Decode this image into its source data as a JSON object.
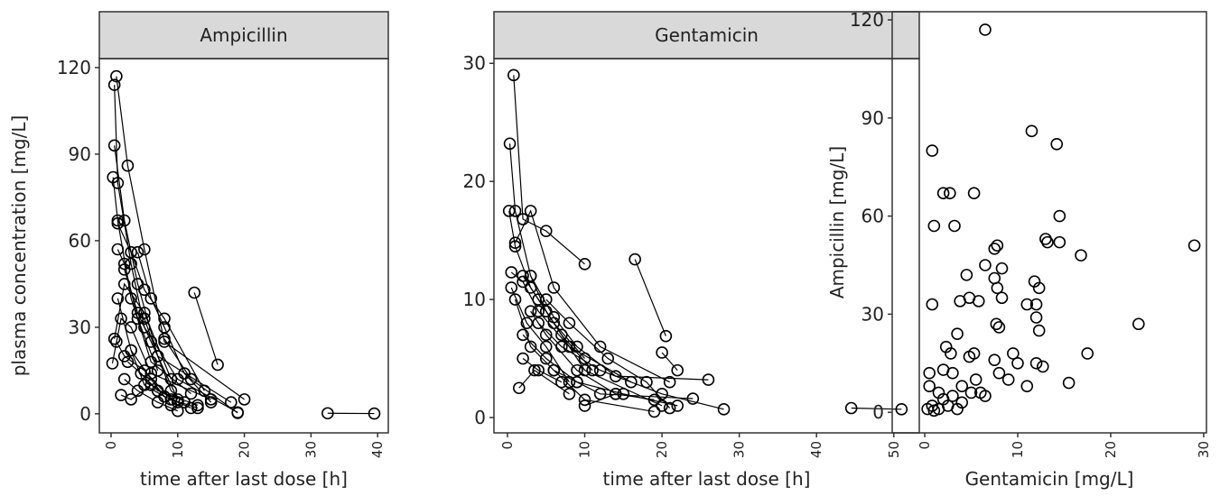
{
  "chart_data": [
    {
      "type": "line",
      "strip": "Ampicillin",
      "xlabel": "time after last dose [h]",
      "ylabel": "plasma concentration [mg/L]",
      "xlim": [
        -1.76,
        41.6
      ],
      "ylim": [
        -6.6,
        123.1
      ],
      "xticks": [
        0,
        10,
        20,
        30,
        40
      ],
      "yticks": [
        0,
        30,
        60,
        90,
        120
      ],
      "color": "#000000",
      "series": [
        {
          "x": [
            0.5,
            1,
            3,
            5,
            10,
            19
          ],
          "values": [
            114,
            80,
            52,
            30,
            12,
            0.5
          ]
        },
        {
          "x": [
            0.8,
            2.5,
            5,
            8,
            20
          ],
          "values": [
            117,
            86,
            57,
            25,
            5
          ]
        },
        {
          "x": [
            0.5,
            2,
            4,
            7,
            18
          ],
          "values": [
            93,
            67,
            45,
            20,
            4
          ]
        },
        {
          "x": [
            0.3,
            1,
            3,
            6,
            12
          ],
          "values": [
            82,
            67,
            40,
            18,
            7
          ]
        },
        {
          "x": [
            1,
            2,
            4,
            7
          ],
          "values": [
            57,
            52,
            33,
            15
          ]
        },
        {
          "x": [
            0.2,
            1.5,
            3,
            6,
            15
          ],
          "values": [
            17.5,
            33,
            30,
            14,
            5
          ]
        },
        {
          "x": [
            0.5,
            2,
            5,
            9
          ],
          "values": [
            26,
            45,
            35,
            12
          ]
        },
        {
          "x": [
            12.5,
            16
          ],
          "values": [
            42,
            17
          ]
        },
        {
          "x": [
            32.5,
            39.5
          ],
          "values": [
            0.2,
            0.1
          ]
        },
        {
          "x": [
            8,
            12,
            19
          ],
          "values": [
            26,
            12,
            0.3
          ]
        },
        {
          "x": [
            1,
            3,
            5,
            8,
            14
          ],
          "values": [
            66,
            56,
            43,
            33,
            8
          ]
        },
        {
          "x": [
            2,
            4,
            6,
            10
          ],
          "values": [
            50,
            35,
            25,
            5
          ]
        },
        {
          "x": [
            0.8,
            2,
            5,
            9,
            13
          ],
          "values": [
            25,
            20,
            15,
            5,
            2
          ]
        },
        {
          "x": [
            1.5,
            3,
            6,
            10
          ],
          "values": [
            6.5,
            5,
            10,
            4
          ]
        },
        {
          "x": [
            4,
            6,
            8,
            11,
            15
          ],
          "values": [
            56,
            40,
            30,
            14,
            4
          ]
        },
        {
          "x": [
            2,
            4,
            7,
            10
          ],
          "values": [
            12,
            8,
            4,
            1
          ]
        },
        {
          "x": [
            3,
            5,
            8,
            12
          ],
          "values": [
            22,
            10,
            6,
            2
          ]
        },
        {
          "x": [
            1,
            3,
            6,
            9
          ],
          "values": [
            40,
            22,
            12,
            3
          ]
        },
        {
          "x": [
            5,
            7,
            9,
            11
          ],
          "values": [
            33,
            20,
            8,
            4
          ]
        },
        {
          "x": [
            2.5,
            4.5,
            7,
            13
          ],
          "values": [
            18,
            14,
            8,
            3
          ]
        }
      ]
    },
    {
      "type": "line",
      "strip": "Gentamicin",
      "xlabel": "time after last dose [h]",
      "xlim": [
        -1.75,
        53.3
      ],
      "ylim": [
        -1.3,
        30.4
      ],
      "xticks": [
        0,
        10,
        20,
        30,
        40,
        50
      ],
      "yticks": [
        0,
        10,
        20,
        30
      ],
      "color": "#000000",
      "series": [
        {
          "x": [
            0.3,
            1,
            3,
            5,
            10,
            20
          ],
          "values": [
            23.2,
            17.5,
            12,
            9,
            4,
            1
          ]
        },
        {
          "x": [
            0.8,
            2,
            5,
            10
          ],
          "values": [
            29,
            16.8,
            15.8,
            13
          ]
        },
        {
          "x": [
            0.2,
            1,
            3,
            6,
            10
          ],
          "values": [
            17.5,
            14.5,
            11,
            8,
            5
          ]
        },
        {
          "x": [
            0.5,
            2,
            4,
            8,
            16
          ],
          "values": [
            12.3,
            11.5,
            9,
            6,
            3
          ]
        },
        {
          "x": [
            16.5,
            20.5
          ],
          "values": [
            13.4,
            6.9
          ]
        },
        {
          "x": [
            44.5,
            51
          ],
          "values": [
            0.8,
            0.7
          ]
        },
        {
          "x": [
            1,
            3,
            6,
            12,
            21
          ],
          "values": [
            14.8,
            17.5,
            11,
            6,
            3
          ]
        },
        {
          "x": [
            2,
            4,
            7,
            11
          ],
          "values": [
            12,
            10,
            7,
            4
          ]
        },
        {
          "x": [
            3,
            5,
            9,
            14
          ],
          "values": [
            9,
            7,
            4,
            2
          ]
        },
        {
          "x": [
            0.5,
            2.5,
            5,
            8
          ],
          "values": [
            11,
            8,
            6,
            3
          ]
        },
        {
          "x": [
            4,
            7,
            12,
            20,
            28
          ],
          "values": [
            8,
            6,
            4,
            2,
            0.7
          ]
        },
        {
          "x": [
            2,
            5,
            9,
            15,
            22
          ],
          "values": [
            7,
            5,
            3,
            2,
            1
          ]
        },
        {
          "x": [
            1,
            3,
            6,
            10,
            19
          ],
          "values": [
            10,
            6,
            4,
            1.5,
            0.5
          ]
        },
        {
          "x": [
            3,
            6,
            9,
            14,
            26
          ],
          "values": [
            12,
            8.5,
            6,
            3.5,
            3.2
          ]
        },
        {
          "x": [
            1.5,
            3.5,
            8
          ],
          "values": [
            2.5,
            4,
            2
          ]
        },
        {
          "x": [
            5,
            8,
            13,
            18,
            21
          ],
          "values": [
            10,
            8,
            5,
            3,
            0.8
          ]
        },
        {
          "x": [
            20,
            22
          ],
          "values": [
            5.5,
            4
          ]
        },
        {
          "x": [
            10,
            14,
            19
          ],
          "values": [
            1,
            2,
            1.5
          ]
        },
        {
          "x": [
            2,
            4,
            7
          ],
          "values": [
            5,
            4,
            3
          ]
        },
        {
          "x": [
            6,
            9,
            12,
            24
          ],
          "values": [
            4,
            3,
            2,
            1.6
          ]
        }
      ]
    },
    {
      "type": "scatter",
      "xlabel": "Gentamicin [mg/L]",
      "ylabel": "Ampicillin [mg/L]",
      "xlim": [
        -3.5,
        30.3
      ],
      "ylim": [
        -6.3,
        122.5
      ],
      "xticks": [
        0,
        10,
        20,
        30
      ],
      "yticks": [
        0,
        30,
        60,
        90,
        120
      ],
      "color": "#000000",
      "x": [
        6.5,
        0.8,
        2,
        2.7,
        5.3,
        11.5,
        14.2,
        1,
        3.2,
        14.5,
        29,
        13,
        13.2,
        14.5,
        16.8,
        7.5,
        7.8,
        4.5,
        6.5,
        8.3,
        7.5,
        11.8,
        12.3,
        7.8,
        8.3,
        0.8,
        3.8,
        4.8,
        5.8,
        12,
        11,
        12,
        12.3,
        7.7,
        8,
        23,
        3.5,
        2.3,
        2.8,
        5.3,
        4.8,
        7.5,
        9.5,
        10,
        12,
        12.7,
        17.5,
        15.5,
        0.5,
        2,
        3,
        8,
        9,
        11,
        0.5,
        1.5,
        2,
        3,
        4,
        5,
        6,
        0.3,
        0.8,
        1.5,
        2.5,
        3.5,
        1,
        4,
        5.5,
        6.5
      ],
      "values": [
        117,
        80,
        67,
        67,
        67,
        86,
        82,
        57,
        57,
        60,
        51,
        53,
        52,
        52,
        48,
        50,
        51,
        42,
        45,
        44,
        41,
        40,
        38,
        38,
        35,
        33,
        34,
        35,
        34,
        33,
        33,
        29,
        25,
        27,
        26,
        27,
        24,
        20,
        18,
        18,
        17,
        16,
        18,
        15,
        15,
        14,
        18,
        9,
        12,
        13,
        12,
        12,
        10,
        8,
        8,
        6,
        4,
        5,
        8,
        6,
        6,
        1,
        2,
        1,
        2,
        1,
        0.5,
        3,
        10,
        5
      ]
    }
  ]
}
